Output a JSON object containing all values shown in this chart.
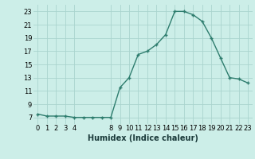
{
  "x": [
    0,
    1,
    2,
    3,
    4,
    5,
    6,
    7,
    8,
    9,
    10,
    11,
    12,
    13,
    14,
    15,
    16,
    17,
    18,
    19,
    20,
    21,
    22,
    23
  ],
  "y": [
    7.5,
    7.2,
    7.2,
    7.2,
    7.0,
    7.0,
    7.0,
    7.0,
    7.0,
    11.5,
    13.0,
    16.5,
    17.0,
    18.0,
    19.5,
    23.0,
    23.0,
    22.5,
    21.5,
    19.0,
    16.0,
    13.0,
    12.8,
    12.2
  ],
  "xlabel": "Humidex (Indice chaleur)",
  "bg_color": "#cceee8",
  "line_color": "#2e7d6e",
  "grid_color": "#aad4ce",
  "ylim": [
    6,
    24
  ],
  "xlim": [
    -0.5,
    23.5
  ],
  "ytick_vals": [
    7,
    9,
    11,
    13,
    15,
    17,
    19,
    21,
    23
  ],
  "xtick_vals": [
    0,
    1,
    2,
    3,
    4,
    8,
    9,
    10,
    11,
    12,
    13,
    14,
    15,
    16,
    17,
    18,
    19,
    20,
    21,
    22,
    23
  ],
  "xlabel_fontsize": 7,
  "tick_fontsize": 6
}
